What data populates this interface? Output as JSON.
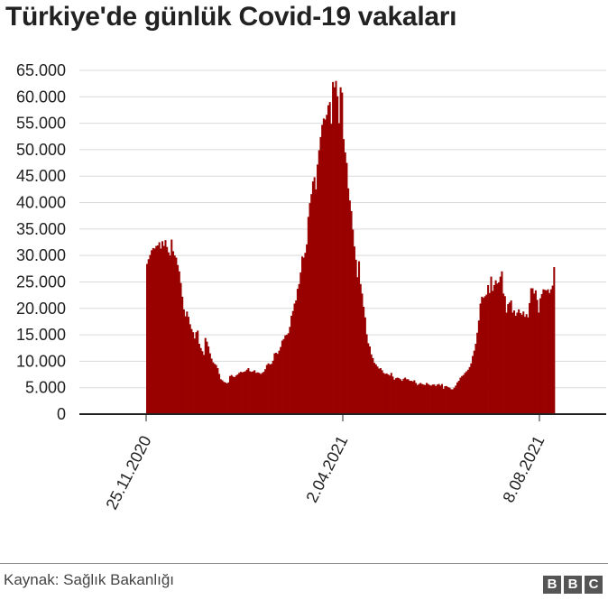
{
  "title": "Türkiye'de günlük Covid-19 vakaları",
  "source": "Kaynak: Sağlık Bakanlığı",
  "logo": [
    "B",
    "B",
    "C"
  ],
  "colors": {
    "bar": "#990000",
    "grid": "#d9d9d9",
    "axis": "#222222"
  },
  "chart_data": {
    "type": "bar",
    "title": "Türkiye'de günlük Covid-19 vakaları",
    "xlabel": "",
    "ylabel": "",
    "ylim": [
      0,
      65000
    ],
    "y_ticks": [
      {
        "value": 0,
        "label": "0"
      },
      {
        "value": 5000,
        "label": "5.000"
      },
      {
        "value": 10000,
        "label": "10.000"
      },
      {
        "value": 15000,
        "label": "15.000"
      },
      {
        "value": 20000,
        "label": "20.000"
      },
      {
        "value": 25000,
        "label": "25.000"
      },
      {
        "value": 30000,
        "label": "30.000"
      },
      {
        "value": 35000,
        "label": "35.000"
      },
      {
        "value": 40000,
        "label": "40.000"
      },
      {
        "value": 45000,
        "label": "45.000"
      },
      {
        "value": 50000,
        "label": "50.000"
      },
      {
        "value": 55000,
        "label": "55.000"
      },
      {
        "value": 60000,
        "label": "60.000"
      },
      {
        "value": 65000,
        "label": "65.000"
      }
    ],
    "x_ticks": [
      {
        "day": 0,
        "label": "25.11.2020"
      },
      {
        "day": 128,
        "label": "2.04.2021"
      },
      {
        "day": 256,
        "label": "8.08.2021"
      }
    ],
    "series": [
      {
        "values": [
          28400,
          29300,
          30100,
          31000,
          31400,
          31300,
          31800,
          31900,
          32500,
          31300,
          32700,
          31800,
          32900,
          31600,
          30600,
          30000,
          33000,
          30800,
          30000,
          29600,
          28200,
          27000,
          24800,
          22200,
          19800,
          18500,
          19400,
          18400,
          17000,
          16100,
          15500,
          14300,
          15500,
          15800,
          13300,
          12500,
          11900,
          11200,
          14400,
          13700,
          12800,
          11500,
          10500,
          9800,
          9500,
          9300,
          8700,
          7600,
          6600,
          6400,
          6100,
          6000,
          5800,
          6000,
          7200,
          7400,
          7100,
          7000,
          7300,
          7500,
          7800,
          8000,
          7900,
          8000,
          8100,
          8400,
          8700,
          8100,
          8000,
          8100,
          8300,
          7800,
          7900,
          7800,
          7600,
          7800,
          8000,
          8500,
          9300,
          9600,
          9400,
          9500,
          10100,
          11500,
          11600,
          11400,
          12000,
          12700,
          13900,
          14200,
          14900,
          15000,
          15300,
          16500,
          18600,
          19500,
          20900,
          21500,
          23700,
          24600,
          26800,
          29800,
          29600,
          30500,
          32100,
          37300,
          39900,
          41600,
          44000,
          44800,
          42500,
          47200,
          49900,
          52400,
          54700,
          55900,
          55700,
          56600,
          58400,
          59000,
          54900,
          62800,
          61800,
          63000,
          60100,
          55000,
          61800,
          60800,
          52000,
          49500,
          47500,
          42700,
          40400,
          38400,
          34900,
          31700,
          29200,
          25900,
          28900,
          24600,
          22800,
          20300,
          18300,
          15100,
          13400,
          12800,
          11300,
          10600,
          9700,
          9400,
          9000,
          8600,
          8700,
          8300,
          7800,
          7600,
          7700,
          7500,
          7300,
          7800,
          7100,
          6500,
          6800,
          6900,
          6800,
          6600,
          6300,
          6700,
          6900,
          6600,
          6600,
          6300,
          6300,
          6200,
          6400,
          5900,
          5500,
          5700,
          5900,
          5700,
          5600,
          5500,
          5900,
          5700,
          5500,
          5400,
          5600,
          5600,
          5300,
          5600,
          5700,
          5400,
          5700,
          4800,
          5300,
          5300,
          5100,
          5000,
          4700,
          4700,
          5000,
          5400,
          6000,
          6300,
          6900,
          7200,
          7400,
          7800,
          8100,
          8400,
          8900,
          9600,
          11000,
          12000,
          13300,
          15400,
          17700,
          20900,
          22200,
          22000,
          22300,
          22600,
          24400,
          22900,
          26000,
          23300,
          24400,
          25300,
          24700,
          24900,
          26000,
          27000,
          22800,
          22300,
          19200,
          20800,
          21100,
          21500,
          19200,
          19600,
          18600,
          19200,
          19800,
          19100,
          18800,
          19400,
          18400,
          18900,
          18300,
          21000,
          23800,
          23800,
          22800,
          23400,
          21600,
          19200,
          21900,
          22700,
          23600,
          23500,
          23400,
          23600,
          22900,
          23600,
          24300,
          27800
        ]
      }
    ]
  }
}
